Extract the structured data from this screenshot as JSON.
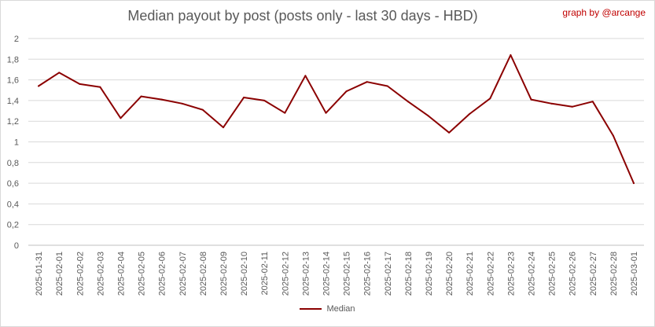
{
  "header": {
    "title": "Median payout by post (posts only - last 30 days - HBD)",
    "credit": "graph by @arcange"
  },
  "chart_data": {
    "type": "line",
    "title": "Median payout by post (posts only - last 30 days - HBD)",
    "xlabel": "",
    "ylabel": "",
    "ylim": [
      0,
      2
    ],
    "yticks": [
      0,
      0.2,
      0.4,
      0.6,
      0.8,
      1,
      1.2,
      1.4,
      1.6,
      1.8,
      2
    ],
    "ytick_labels": [
      "0",
      "0,2",
      "0,4",
      "0,6",
      "0,8",
      "1",
      "1,2",
      "1,4",
      "1,6",
      "1,8",
      "2"
    ],
    "grid": true,
    "legend_position": "bottom",
    "categories": [
      "2025-01-31",
      "2025-02-01",
      "2025-02-02",
      "2025-02-03",
      "2025-02-04",
      "2025-02-05",
      "2025-02-06",
      "2025-02-07",
      "2025-02-08",
      "2025-02-09",
      "2025-02-10",
      "2025-02-11",
      "2025-02-12",
      "2025-02-13",
      "2025-02-14",
      "2025-02-15",
      "2025-02-16",
      "2025-02-17",
      "2025-02-18",
      "2025-02-19",
      "2025-02-20",
      "2025-02-21",
      "2025-02-22",
      "2025-02-23",
      "2025-02-24",
      "2025-02-25",
      "2025-02-26",
      "2025-02-27",
      "2025-02-28",
      "2025-03-01"
    ],
    "series": [
      {
        "name": "Median",
        "color": "#8b0000",
        "values": [
          1.54,
          1.67,
          1.56,
          1.53,
          1.23,
          1.44,
          1.41,
          1.37,
          1.31,
          1.14,
          1.43,
          1.4,
          1.28,
          1.64,
          1.28,
          1.49,
          1.58,
          1.54,
          1.39,
          1.25,
          1.09,
          1.27,
          1.42,
          1.84,
          1.41,
          1.37,
          1.34,
          1.39,
          1.06,
          0.6
        ]
      }
    ]
  }
}
